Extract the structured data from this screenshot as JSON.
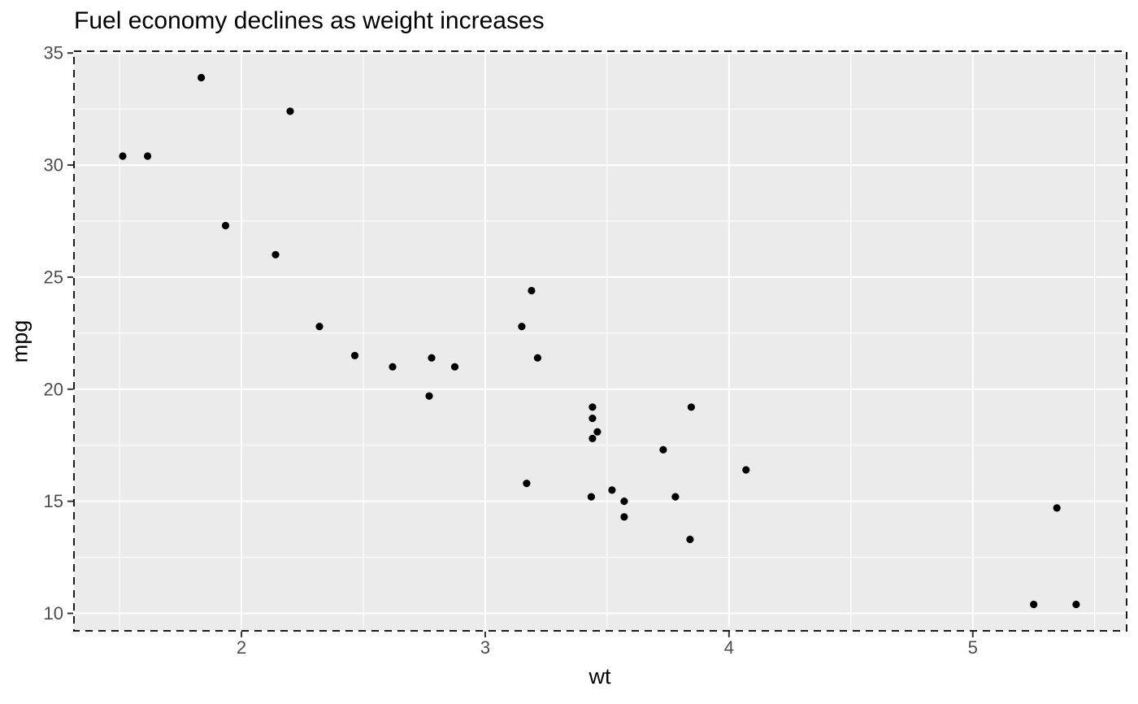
{
  "chart_data": {
    "type": "scatter",
    "title": "Fuel economy declines as weight increases",
    "xlabel": "wt",
    "ylabel": "mpg",
    "xlim": [
      1.313,
      5.631
    ],
    "ylim": [
      9.22,
      35.08
    ],
    "x_major_ticks": [
      2,
      3,
      4,
      5
    ],
    "x_minor_ticks": [
      1.5,
      2.5,
      3.5,
      4.5,
      5.5
    ],
    "y_major_ticks": [
      10,
      15,
      20,
      25,
      30,
      35
    ],
    "y_minor_ticks": [
      12.5,
      17.5,
      22.5,
      27.5,
      32.5
    ],
    "grid": true,
    "legend_position": "none",
    "points": [
      [
        2.62,
        21.0
      ],
      [
        2.875,
        21.0
      ],
      [
        2.32,
        22.8
      ],
      [
        3.215,
        21.4
      ],
      [
        3.44,
        18.7
      ],
      [
        3.46,
        18.1
      ],
      [
        3.57,
        14.3
      ],
      [
        3.19,
        24.4
      ],
      [
        3.15,
        22.8
      ],
      [
        3.44,
        19.2
      ],
      [
        3.44,
        17.8
      ],
      [
        4.07,
        16.4
      ],
      [
        3.73,
        17.3
      ],
      [
        3.78,
        15.2
      ],
      [
        5.25,
        10.4
      ],
      [
        5.424,
        10.4
      ],
      [
        5.345,
        14.7
      ],
      [
        2.2,
        32.4
      ],
      [
        1.615,
        30.4
      ],
      [
        1.835,
        33.9
      ],
      [
        2.465,
        21.5
      ],
      [
        3.52,
        15.5
      ],
      [
        3.435,
        15.2
      ],
      [
        3.84,
        13.3
      ],
      [
        3.845,
        19.2
      ],
      [
        1.935,
        27.3
      ],
      [
        2.14,
        26.0
      ],
      [
        1.513,
        30.4
      ],
      [
        3.17,
        15.8
      ],
      [
        2.77,
        19.7
      ],
      [
        3.57,
        15.0
      ],
      [
        2.78,
        21.4
      ]
    ]
  },
  "style": {
    "page_bg": "#ffffff",
    "panel_bg": "#ebebeb",
    "grid_color": "#ffffff",
    "point_color": "#000000",
    "border_color": "#1a1a1a",
    "tick_mark_color": "#333333",
    "tick_label_color": "#4d4d4d",
    "text_color": "#000000"
  }
}
